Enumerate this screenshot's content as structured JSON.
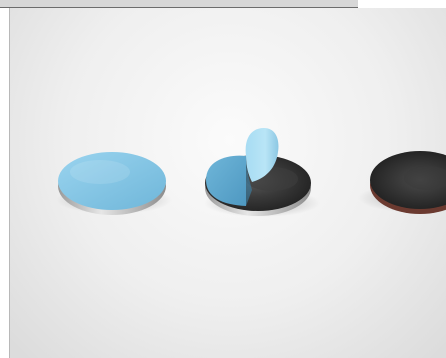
{
  "image": {
    "subject": "three-round-adhesive-pads",
    "items": [
      {
        "state": "liner-on",
        "liner_color": "#84c7e5",
        "base_color": "#c8c8c8"
      },
      {
        "state": "liner-peeling",
        "liner_color": "#84c7e5",
        "base_color": "#2a2a2a"
      },
      {
        "state": "liner-removed",
        "base_color": "#2d2d2d"
      }
    ],
    "background_color": "#eeeeee"
  }
}
